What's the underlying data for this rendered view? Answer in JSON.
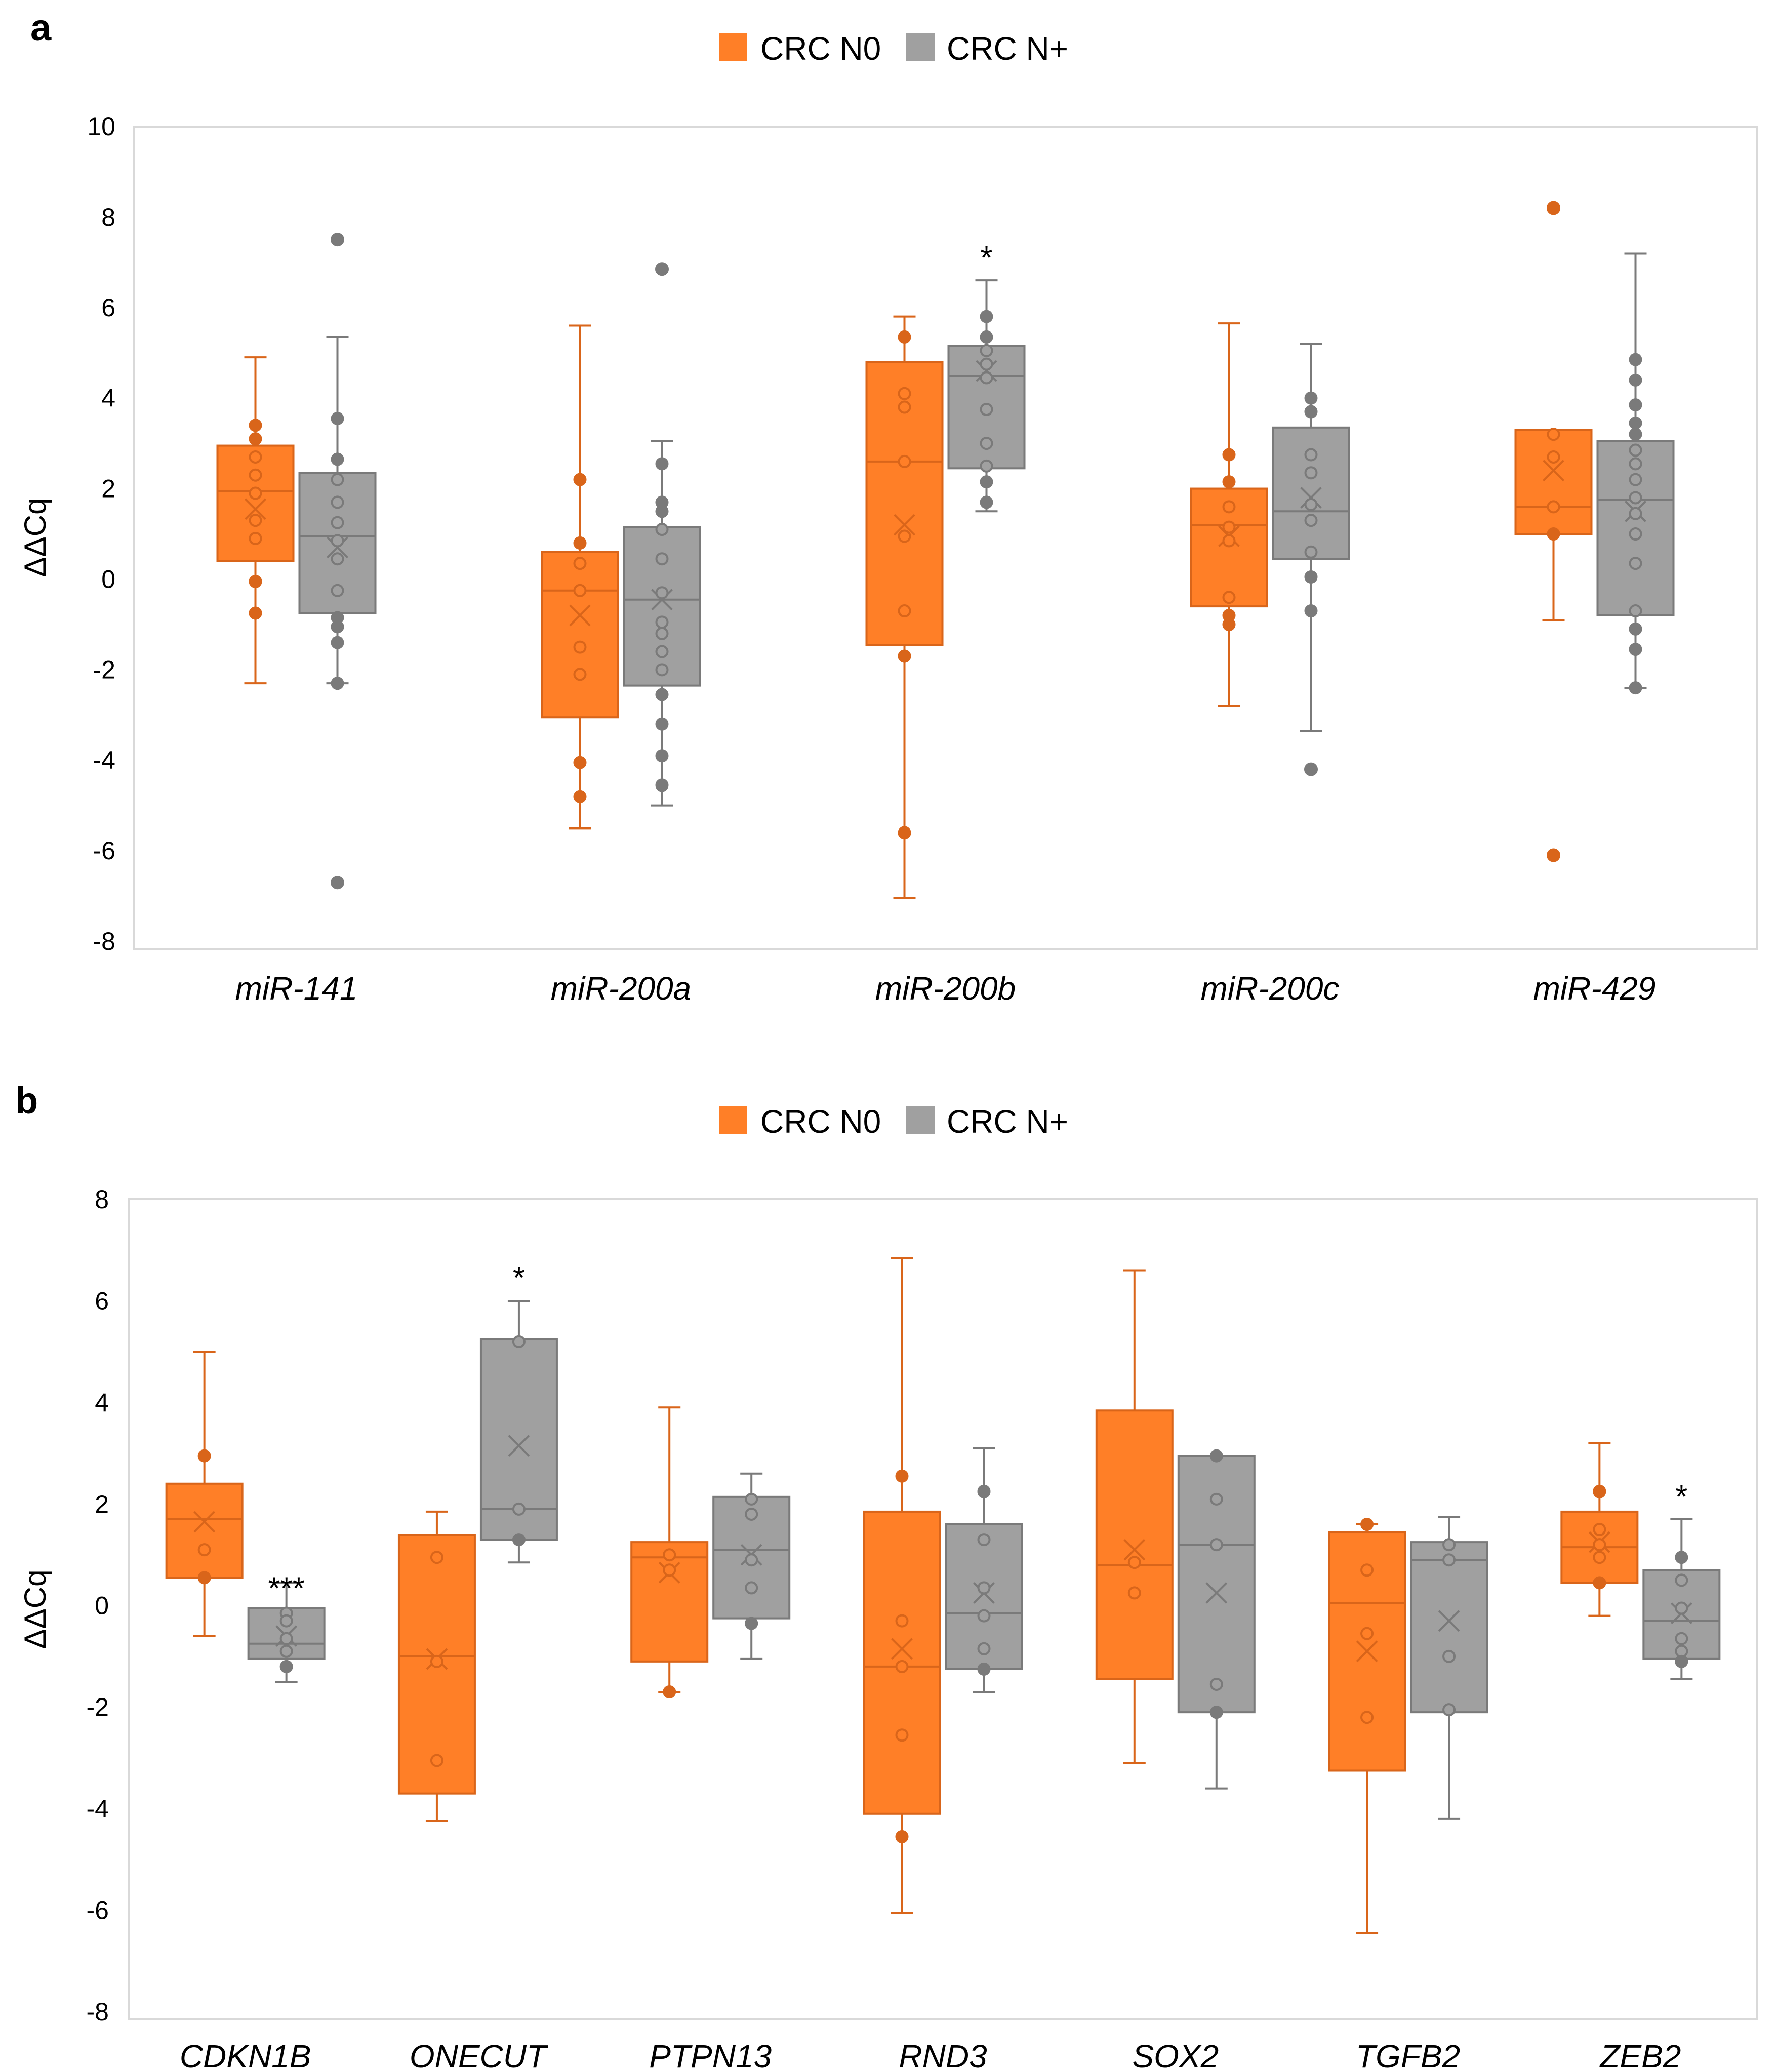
{
  "colors": {
    "n0": "#FF7F27",
    "n0_stroke": "#D9651A",
    "npos": "#A0A0A0",
    "npos_stroke": "#7A7A7A",
    "frame": "#D9D9D9"
  },
  "chart_data": [
    {
      "type": "box",
      "panel_label": "a",
      "ylabel": "ΔΔCq",
      "ylim": [
        -8,
        10
      ],
      "yticks": [
        "10",
        "8",
        "6",
        "4",
        "2",
        "0",
        "-2",
        "-4",
        "-6",
        "-8"
      ],
      "legend": [
        "CRC N0",
        "CRC N+"
      ],
      "categories": [
        "miR-141",
        "miR-200a",
        "miR-200b",
        "miR-200c",
        "miR-429"
      ],
      "groups": [
        {
          "n0": {
            "whisker_low": -2.3,
            "q1": 0.4,
            "median": 1.95,
            "q3": 2.95,
            "whisker_high": 4.9,
            "mean": 1.55,
            "points": [
              3.4,
              3.1,
              2.7,
              2.3,
              1.9,
              1.3,
              0.9,
              -0.05,
              -0.75
            ],
            "outliers": []
          },
          "npos": {
            "whisker_low": -2.3,
            "q1": -0.75,
            "median": 0.95,
            "q3": 2.35,
            "whisker_high": 5.35,
            "mean": 0.7,
            "points": [
              3.55,
              2.65,
              2.2,
              1.7,
              1.25,
              0.85,
              0.45,
              -0.25,
              -0.85,
              -1.05,
              -1.4,
              -2.3
            ],
            "outliers": [
              7.5,
              -6.7
            ]
          },
          "sig": ""
        },
        {
          "n0": {
            "whisker_low": -5.5,
            "q1": -3.05,
            "median": -0.25,
            "q3": 0.6,
            "whisker_high": 5.6,
            "mean": -0.8,
            "points": [
              2.2,
              0.8,
              0.35,
              -0.25,
              -1.5,
              -2.1,
              -4.05,
              -4.8
            ],
            "outliers": []
          },
          "npos": {
            "whisker_low": -5.0,
            "q1": -2.35,
            "median": -0.45,
            "q3": 1.15,
            "whisker_high": 3.05,
            "mean": -0.45,
            "points": [
              2.55,
              1.7,
              1.5,
              1.1,
              0.45,
              -0.3,
              -0.95,
              -1.2,
              -1.6,
              -2.0,
              -2.55,
              -3.2,
              -3.9,
              -4.55
            ],
            "outliers": [
              6.85
            ]
          },
          "sig": ""
        },
        {
          "n0": {
            "whisker_low": -7.05,
            "q1": -1.45,
            "median": 2.6,
            "q3": 4.8,
            "whisker_high": 5.8,
            "mean": 1.2,
            "points": [
              5.35,
              4.1,
              3.8,
              2.6,
              0.95,
              -0.7,
              -1.7,
              -5.6
            ],
            "outliers": []
          },
          "npos": {
            "whisker_low": 1.5,
            "q1": 2.45,
            "median": 4.5,
            "q3": 5.15,
            "whisker_high": 6.6,
            "mean": 4.6,
            "points": [
              5.8,
              5.35,
              5.05,
              4.75,
              4.45,
              3.75,
              3.0,
              2.5,
              2.15,
              1.7
            ],
            "outliers": []
          },
          "sig": "*"
        },
        {
          "n0": {
            "whisker_low": -2.8,
            "q1": -0.6,
            "median": 1.2,
            "q3": 2.0,
            "whisker_high": 5.65,
            "mean": 0.95,
            "points": [
              2.75,
              2.15,
              1.6,
              1.15,
              0.85,
              -0.4,
              -0.8,
              -1.0
            ],
            "outliers": []
          },
          "npos": {
            "whisker_low": -3.35,
            "q1": 0.45,
            "median": 1.5,
            "q3": 3.35,
            "whisker_high": 5.2,
            "mean": 1.8,
            "points": [
              4.0,
              3.7,
              2.75,
              2.35,
              1.65,
              1.3,
              0.6,
              0.05,
              -0.7
            ],
            "outliers": [
              -4.2
            ]
          },
          "sig": ""
        },
        {
          "n0": {
            "whisker_low": -0.9,
            "q1": 1.0,
            "median": 1.6,
            "q3": 3.3,
            "whisker_high": 3.3,
            "mean": 2.4,
            "points": [
              3.2,
              2.7,
              1.6,
              1.0
            ],
            "outliers": [
              8.2,
              -6.1
            ]
          },
          "npos": {
            "whisker_low": -2.4,
            "q1": -0.8,
            "median": 1.75,
            "q3": 3.05,
            "whisker_high": 7.2,
            "mean": 1.5,
            "points": [
              4.85,
              4.4,
              3.85,
              3.45,
              3.2,
              2.85,
              2.55,
              2.2,
              1.8,
              1.45,
              1.0,
              0.35,
              -0.7,
              -1.1,
              -1.55,
              -2.4
            ],
            "outliers": []
          },
          "sig": ""
        }
      ]
    },
    {
      "type": "box",
      "panel_label": "b",
      "ylabel": "ΔΔCq",
      "ylim": [
        -8,
        8
      ],
      "yticks": [
        "8",
        "6",
        "4",
        "2",
        "0",
        "-2",
        "-4",
        "-6",
        "-8"
      ],
      "legend": [
        "CRC N0",
        "CRC N+"
      ],
      "categories": [
        "CDKN1B",
        "ONECUT",
        "PTPN13",
        "RND3",
        "SOX2",
        "TGFB2",
        "ZEB2"
      ],
      "groups": [
        {
          "n0": {
            "whisker_low": -0.6,
            "q1": 0.55,
            "median": 1.7,
            "q3": 2.4,
            "whisker_high": 5.0,
            "mean": 1.65,
            "points": [
              2.95,
              1.1,
              0.55
            ],
            "outliers": []
          },
          "npos": {
            "whisker_low": -1.5,
            "q1": -1.05,
            "median": -0.75,
            "q3": -0.05,
            "whisker_high": 0.45,
            "mean": -0.6,
            "points": [
              -0.15,
              -0.3,
              -0.65,
              -0.9,
              -1.2
            ],
            "outliers": []
          },
          "sig": "***"
        },
        {
          "n0": {
            "whisker_low": -4.25,
            "q1": -3.7,
            "median": -1.0,
            "q3": 1.4,
            "whisker_high": 1.85,
            "mean": -1.05,
            "points": [
              0.95,
              -1.1,
              -3.05
            ],
            "outliers": []
          },
          "npos": {
            "whisker_low": 0.85,
            "q1": 1.3,
            "median": 1.9,
            "q3": 5.25,
            "whisker_high": 6.0,
            "mean": 3.15,
            "points": [
              5.2,
              1.9,
              1.3
            ],
            "outliers": []
          },
          "sig": "*"
        },
        {
          "n0": {
            "whisker_low": -1.7,
            "q1": -1.1,
            "median": 0.95,
            "q3": 1.25,
            "whisker_high": 3.9,
            "mean": 0.65,
            "points": [
              1.0,
              0.7,
              -1.7
            ],
            "outliers": []
          },
          "npos": {
            "whisker_low": -1.05,
            "q1": -0.25,
            "median": 1.1,
            "q3": 2.15,
            "whisker_high": 2.6,
            "mean": 1.0,
            "points": [
              2.1,
              1.8,
              0.9,
              0.35,
              -0.35
            ],
            "outliers": []
          },
          "sig": ""
        },
        {
          "n0": {
            "whisker_low": -6.05,
            "q1": -4.1,
            "median": -1.2,
            "q3": 1.85,
            "whisker_high": 6.85,
            "mean": -0.85,
            "points": [
              2.55,
              -0.3,
              -1.2,
              -2.55,
              -4.55
            ],
            "outliers": []
          },
          "npos": {
            "whisker_low": -1.7,
            "q1": -1.25,
            "median": -0.15,
            "q3": 1.6,
            "whisker_high": 3.1,
            "mean": 0.25,
            "points": [
              2.25,
              1.3,
              0.35,
              -0.2,
              -0.85,
              -1.25
            ],
            "outliers": []
          },
          "sig": ""
        },
        {
          "n0": {
            "whisker_low": -3.1,
            "q1": -1.45,
            "median": 0.8,
            "q3": 3.85,
            "whisker_high": 6.6,
            "mean": 1.1,
            "points": [
              0.85,
              0.25
            ],
            "outliers": []
          },
          "npos": {
            "whisker_low": -3.6,
            "q1": -2.1,
            "median": 1.2,
            "q3": 2.95,
            "whisker_high": 2.95,
            "mean": 0.25,
            "points": [
              2.95,
              2.1,
              1.2,
              -1.55,
              -2.1
            ],
            "outliers": []
          },
          "sig": ""
        },
        {
          "n0": {
            "whisker_low": -6.45,
            "q1": -3.25,
            "median": 0.05,
            "q3": 1.45,
            "whisker_high": 1.6,
            "mean": -0.9,
            "points": [
              1.6,
              0.7,
              -0.55,
              -2.2
            ],
            "outliers": []
          },
          "npos": {
            "whisker_low": -4.2,
            "q1": -2.1,
            "median": 0.9,
            "q3": 1.25,
            "whisker_high": 1.75,
            "mean": -0.3,
            "points": [
              1.2,
              0.9,
              -1.0,
              -2.05
            ],
            "outliers": []
          },
          "sig": ""
        },
        {
          "n0": {
            "whisker_low": -0.2,
            "q1": 0.45,
            "median": 1.15,
            "q3": 1.85,
            "whisker_high": 3.2,
            "mean": 1.25,
            "points": [
              2.25,
              1.5,
              1.2,
              0.95,
              0.45
            ],
            "outliers": []
          },
          "npos": {
            "whisker_low": -1.45,
            "q1": -1.05,
            "median": -0.3,
            "q3": 0.7,
            "whisker_high": 1.7,
            "mean": -0.15,
            "points": [
              0.95,
              0.5,
              -0.05,
              -0.65,
              -0.9,
              -1.1
            ],
            "outliers": []
          },
          "sig": "*"
        }
      ]
    }
  ]
}
